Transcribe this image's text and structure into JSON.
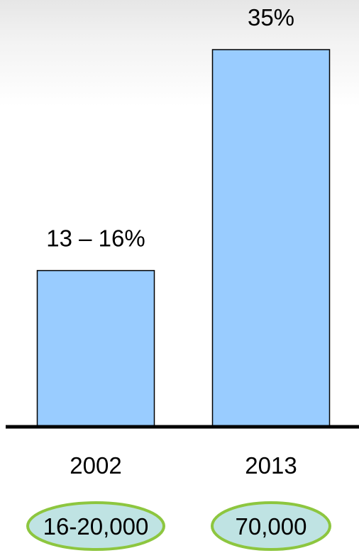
{
  "chart_data": {
    "type": "bar",
    "categories": [
      "2002",
      "2013"
    ],
    "values": [
      14.5,
      35
    ],
    "data_labels": [
      "13 – 16%",
      "35%"
    ],
    "title": "",
    "xlabel": "",
    "ylabel": "",
    "ylim": [
      0,
      36
    ],
    "grid": false,
    "legend": "none",
    "colors": {
      "bar_fill": "#99ccff",
      "bar_stroke": "#000000",
      "oval_fill": "#bfe3e3",
      "oval_stroke": "#8dc63f"
    },
    "counts": [
      "16-20,000",
      "70,000"
    ]
  }
}
